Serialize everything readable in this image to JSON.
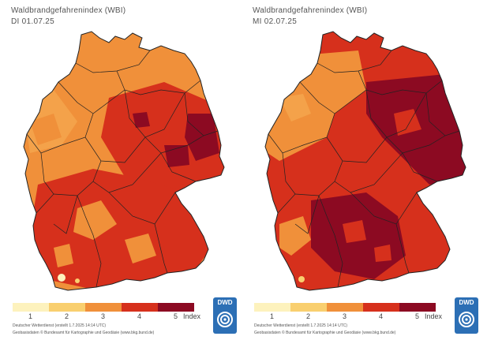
{
  "maps": [
    {
      "title": "Waldbrandgefahrenindex (WBI)",
      "date": "DI 01.07.25",
      "credit_line1": "Deutscher Wetterdienst (erstellt 1.7.2025 14:14 UTC)",
      "credit_line2": "Geobasisdaten © Bundesamt für Kartographie und Geodäsie (www.bkg.bund.de)"
    },
    {
      "title": "Waldbrandgefahrenindex (WBI)",
      "date": "MI 02.07.25",
      "credit_line1": "Deutscher Wetterdienst (erstellt 1.7.2025 14:14 UTC)",
      "credit_line2": "Geobasisdaten © Bundesamt für Kartographie und Geodäsie (www.bkg.bund.de)"
    }
  ],
  "legend": {
    "labels": [
      "1",
      "2",
      "3",
      "4",
      "5"
    ],
    "unit": "Index",
    "colors": [
      "#fdf2bd",
      "#f9cf6f",
      "#f0903a",
      "#d6301c",
      "#8c0a22"
    ]
  },
  "logo": {
    "text": "DWD"
  }
}
